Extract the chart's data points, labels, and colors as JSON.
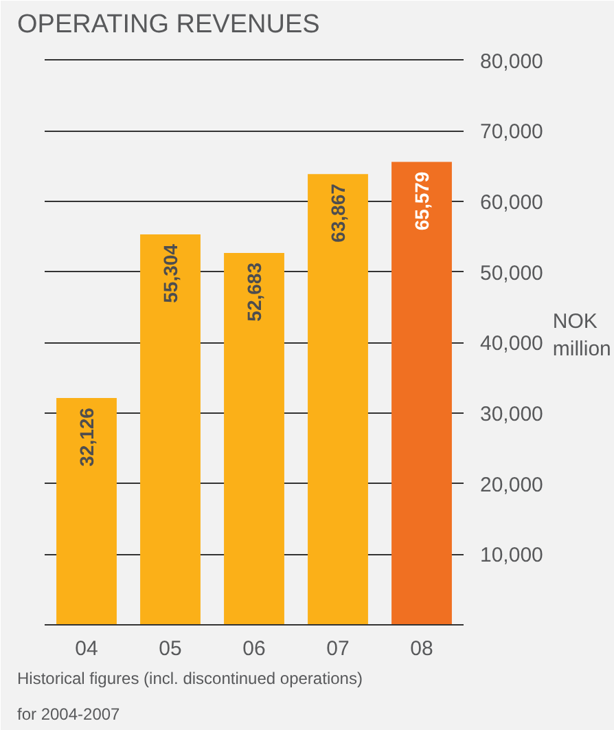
{
  "chart_data": {
    "type": "bar",
    "title": "OPERATING REVENUES",
    "ylabel": "NOK million",
    "categories": [
      "04",
      "05",
      "06",
      "07",
      "08"
    ],
    "values": [
      32126,
      55304,
      52683,
      63867,
      65579
    ],
    "colors": [
      "#fbb018",
      "#fbb018",
      "#fbb018",
      "#fbb018",
      "#f07022"
    ],
    "value_labels": [
      "32,126",
      "55,304",
      "52,683",
      "63,867",
      "65,579"
    ],
    "ylim": [
      0,
      82000
    ],
    "yticks": [
      {
        "value": 0,
        "label": null
      },
      "10,000",
      "20,000",
      "30,000",
      "40,000",
      "50,000",
      "60,000",
      "70,000",
      "80,000"
    ],
    "grid": "y",
    "annotations": [
      "Historical figures (incl. discontinued operations) for 2004-2007"
    ]
  }
}
